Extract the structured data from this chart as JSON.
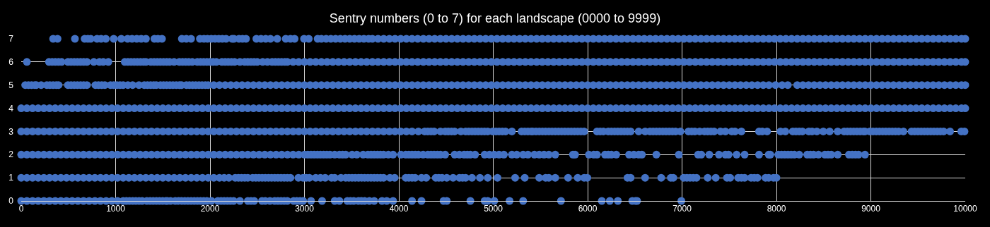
{
  "chart_data": {
    "type": "scatter",
    "title": "Sentry numbers (0 to 7) for each landscape (0000 to 9999)",
    "xlim": [
      0,
      10000
    ],
    "xticks": [
      0,
      1000,
      2000,
      3000,
      4000,
      5000,
      6000,
      7000,
      8000,
      9000,
      10000
    ],
    "ylim": [
      0,
      7
    ],
    "yticks": [
      0,
      1,
      2,
      3,
      4,
      5,
      6,
      7
    ],
    "grid": true,
    "marker": "circle",
    "series": [
      {
        "color": "#4472c4",
        "x": [
          0,
          60,
          120,
          180,
          240,
          300,
          360,
          420,
          480,
          540,
          600,
          660,
          720,
          780,
          840,
          900,
          960,
          1020,
          1080,
          1114,
          1147,
          1181,
          1214,
          1248,
          1281,
          1331,
          1365,
          1398,
          1432,
          1465,
          1498,
          1532,
          1548,
          1582,
          1632,
          1665,
          1699,
          1732,
          1766,
          1799,
          1833,
          1866,
          1900,
          1933,
          1967,
          2016,
          2083,
          2117,
          2150,
          2184,
          2217,
          2250,
          2317,
          2401,
          2434,
          2468,
          2551,
          2585,
          2635,
          2685,
          2719,
          2752,
          2786,
          2819,
          2886,
          2919,
          2953,
          2986,
          3070,
          3187,
          3321,
          3371,
          3455,
          3488,
          3522,
          3572,
          3605,
          3638,
          3688,
          3739,
          3822,
          3872,
          3939,
          4140,
          4240,
          4474,
          4508,
          4758,
          4909,
          4942,
          5011,
          5173,
          5317,
          5718,
          6150,
          6235,
          6320,
          6473,
          6507,
          6524,
          6993
        ],
        "values": [
          0,
          0,
          0,
          0,
          0,
          0,
          0,
          0,
          0,
          0,
          0,
          0,
          0,
          0,
          0,
          0,
          0,
          0,
          0,
          0,
          0,
          0,
          0,
          0,
          0,
          0,
          0,
          0,
          0,
          0,
          0,
          0,
          0,
          0,
          0,
          0,
          0,
          0,
          0,
          0,
          0,
          0,
          0,
          0,
          0,
          0,
          0,
          0,
          0,
          0,
          0,
          0,
          0,
          0,
          0,
          0,
          0,
          0,
          0,
          0,
          0,
          0,
          0,
          0,
          0,
          0,
          0,
          0,
          0,
          0,
          0,
          0,
          0,
          0,
          0,
          0,
          0,
          0,
          0,
          0,
          0,
          0,
          0,
          0,
          0,
          0,
          0,
          0,
          0,
          0,
          0,
          0,
          0,
          0,
          0,
          0,
          0,
          0,
          0,
          0,
          0
        ]
      },
      {
        "color": "#4472c4",
        "x": [
          0,
          60,
          120,
          180,
          240,
          300,
          360,
          420,
          480,
          540,
          600,
          660,
          720,
          780,
          840,
          900,
          960,
          1020,
          1080,
          1140,
          1200,
          1260,
          1320,
          1380,
          1440,
          1500,
          1560,
          1620,
          1680,
          1740,
          1800,
          1860,
          1920,
          1980,
          2040,
          2100,
          2150,
          2200,
          2267,
          2301,
          2334,
          2368,
          2401,
          2451,
          2485,
          2518,
          2552,
          2585,
          2619,
          2652,
          2686,
          2719,
          2752,
          2786,
          2819,
          2852,
          2936,
          2986,
          3019,
          3053,
          3120,
          3170,
          3220,
          3287,
          3321,
          3387,
          3437,
          3471,
          3505,
          3538,
          3572,
          3605,
          3638,
          3672,
          3705,
          3739,
          3772,
          3806,
          3839,
          3906,
          3956,
          4073,
          4106,
          4140,
          4173,
          4240,
          4290,
          4391,
          4424,
          4458,
          4508,
          4575,
          4642,
          4675,
          4708,
          4775,
          4859,
          4942,
          5045,
          5232,
          5334,
          5487,
          5555,
          5589,
          5657,
          5793,
          5895,
          5963,
          5997,
          6422,
          6456,
          6609,
          6779,
          6881,
          6908,
          7017,
          7051,
          7085,
          7119,
          7153,
          7272,
          7357,
          7476,
          7510,
          7595,
          7629,
          7663,
          7731,
          7765,
          7799,
          7884,
          7918,
          7969,
          8000
        ],
        "values": [
          1,
          1,
          1,
          1,
          1,
          1,
          1,
          1,
          1,
          1,
          1,
          1,
          1,
          1,
          1,
          1,
          1,
          1,
          1,
          1,
          1,
          1,
          1,
          1,
          1,
          1,
          1,
          1,
          1,
          1,
          1,
          1,
          1,
          1,
          1,
          1,
          1,
          1,
          1,
          1,
          1,
          1,
          1,
          1,
          1,
          1,
          1,
          1,
          1,
          1,
          1,
          1,
          1,
          1,
          1,
          1,
          1,
          1,
          1,
          1,
          1,
          1,
          1,
          1,
          1,
          1,
          1,
          1,
          1,
          1,
          1,
          1,
          1,
          1,
          1,
          1,
          1,
          1,
          1,
          1,
          1,
          1,
          1,
          1,
          1,
          1,
          1,
          1,
          1,
          1,
          1,
          1,
          1,
          1,
          1,
          1,
          1,
          1,
          1,
          1,
          1,
          1,
          1,
          1,
          1,
          1,
          1,
          1,
          1,
          1,
          1,
          1,
          1,
          1,
          1,
          1,
          1,
          1,
          1,
          1,
          1,
          1,
          1,
          1,
          1,
          1,
          1,
          1,
          1,
          1,
          1,
          1,
          1,
          1
        ]
      },
      {
        "color": "#4472c4",
        "x": [
          0,
          60,
          120,
          180,
          240,
          300,
          360,
          420,
          480,
          540,
          600,
          660,
          720,
          780,
          840,
          900,
          960,
          1020,
          1080,
          1140,
          1200,
          1260,
          1320,
          1380,
          1440,
          1500,
          1560,
          1620,
          1680,
          1740,
          1800,
          1860,
          1920,
          1980,
          2040,
          2100,
          2160,
          2220,
          2280,
          2340,
          2400,
          2460,
          2520,
          2580,
          2640,
          2700,
          2760,
          2820,
          2880,
          2940,
          3000,
          3036,
          3070,
          3103,
          3137,
          3170,
          3204,
          3237,
          3271,
          3321,
          3371,
          3405,
          3438,
          3505,
          3555,
          3622,
          3672,
          3706,
          3739,
          3773,
          3806,
          3839,
          3889,
          3939,
          4023,
          4073,
          4106,
          4140,
          4173,
          4207,
          4257,
          4307,
          4341,
          4374,
          4408,
          4441,
          4491,
          4591,
          4641,
          4691,
          4725,
          4758,
          4808,
          4909,
          4960,
          5011,
          5062,
          5113,
          5198,
          5249,
          5317,
          5368,
          5436,
          5487,
          5538,
          5589,
          5657,
          5844,
          5867,
          6014,
          6065,
          6099,
          6184,
          6218,
          6252,
          6303,
          6439,
          6490,
          6541,
          6575,
          6728,
          6966,
          7170,
          7204,
          7289,
          7391,
          7459,
          7493,
          7578,
          7663,
          7816,
          7918,
          7935,
          8020,
          8054,
          8088,
          8122,
          8156,
          8190,
          8241,
          8326,
          8360,
          8394,
          8445,
          8513,
          8547,
          8581,
          8649,
          8768,
          8802,
          8836,
          8870,
          8938
        ],
        "values": [
          2,
          2,
          2,
          2,
          2,
          2,
          2,
          2,
          2,
          2,
          2,
          2,
          2,
          2,
          2,
          2,
          2,
          2,
          2,
          2,
          2,
          2,
          2,
          2,
          2,
          2,
          2,
          2,
          2,
          2,
          2,
          2,
          2,
          2,
          2,
          2,
          2,
          2,
          2,
          2,
          2,
          2,
          2,
          2,
          2,
          2,
          2,
          2,
          2,
          2,
          2,
          2,
          2,
          2,
          2,
          2,
          2,
          2,
          2,
          2,
          2,
          2,
          2,
          2,
          2,
          2,
          2,
          2,
          2,
          2,
          2,
          2,
          2,
          2,
          2,
          2,
          2,
          2,
          2,
          2,
          2,
          2,
          2,
          2,
          2,
          2,
          2,
          2,
          2,
          2,
          2,
          2,
          2,
          2,
          2,
          2,
          2,
          2,
          2,
          2,
          2,
          2,
          2,
          2,
          2,
          2,
          2,
          2,
          2,
          2,
          2,
          2,
          2,
          2,
          2,
          2,
          2,
          2,
          2,
          2,
          2,
          2,
          2,
          2,
          2,
          2,
          2,
          2,
          2,
          2,
          2,
          2,
          2,
          2,
          2,
          2,
          2,
          2,
          2,
          2,
          2,
          2,
          2,
          2,
          2,
          2,
          2,
          2,
          2,
          2,
          2,
          2,
          2
        ]
      },
      {
        "color": "#4472c4",
        "x": [
          0,
          60,
          120,
          180,
          240,
          300,
          360,
          420,
          480,
          540,
          600,
          660,
          720,
          780,
          840,
          900,
          960,
          1020,
          1080,
          1140,
          1200,
          1260,
          1320,
          1380,
          1440,
          1500,
          1560,
          1620,
          1680,
          1740,
          1800,
          1860,
          1920,
          1980,
          2040,
          2100,
          2160,
          2220,
          2280,
          2340,
          2400,
          2460,
          2520,
          2580,
          2640,
          2700,
          2760,
          2820,
          2880,
          2940,
          3000,
          3060,
          3120,
          3180,
          3240,
          3300,
          3360,
          3420,
          3480,
          3540,
          3600,
          3660,
          3720,
          3780,
          3840,
          3900,
          3960,
          4020,
          4080,
          4140,
          4207,
          4274,
          4307,
          4341,
          4374,
          4441,
          4491,
          4524,
          4558,
          4591,
          4658,
          4708,
          4741,
          4775,
          4808,
          4841,
          4875,
          4908,
          4942,
          4994,
          5028,
          5062,
          5096,
          5130,
          5198,
          5300,
          5334,
          5368,
          5402,
          5419,
          5453,
          5487,
          5521,
          5555,
          5589,
          5623,
          5657,
          5691,
          5725,
          5759,
          5793,
          5827,
          5861,
          5895,
          5929,
          5963,
          6099,
          6133,
          6167,
          6218,
          6252,
          6286,
          6320,
          6354,
          6388,
          6422,
          6456,
          6541,
          6609,
          6660,
          6694,
          6728,
          6762,
          6796,
          6830,
          6864,
          6898,
          6932,
          6983,
          7068,
          7102,
          7136,
          7187,
          7238,
          7272,
          7306,
          7340,
          7408,
          7459,
          7527,
          7561,
          7629,
          7816,
          7850,
          7901,
          8043,
          8094,
          8173,
          8207,
          8241,
          8275,
          8343,
          8377,
          8428,
          8496,
          8564,
          8649,
          8717,
          8751,
          8785,
          8819,
          8853,
          8887,
          8921,
          8938,
          8989,
          9023,
          9057,
          9091,
          9125,
          9159,
          9193,
          9227,
          9261,
          9295,
          9345,
          9431,
          9465,
          9499,
          9533,
          9567,
          9601,
          9635,
          9669,
          9703,
          9737,
          9771,
          9839,
          9958,
          9992
        ],
        "values": [
          3,
          3,
          3,
          3,
          3,
          3,
          3,
          3,
          3,
          3,
          3,
          3,
          3,
          3,
          3,
          3,
          3,
          3,
          3,
          3,
          3,
          3,
          3,
          3,
          3,
          3,
          3,
          3,
          3,
          3,
          3,
          3,
          3,
          3,
          3,
          3,
          3,
          3,
          3,
          3,
          3,
          3,
          3,
          3,
          3,
          3,
          3,
          3,
          3,
          3,
          3,
          3,
          3,
          3,
          3,
          3,
          3,
          3,
          3,
          3,
          3,
          3,
          3,
          3,
          3,
          3,
          3,
          3,
          3,
          3,
          3,
          3,
          3,
          3,
          3,
          3,
          3,
          3,
          3,
          3,
          3,
          3,
          3,
          3,
          3,
          3,
          3,
          3,
          3,
          3,
          3,
          3,
          3,
          3,
          3,
          3,
          3,
          3,
          3,
          3,
          3,
          3,
          3,
          3,
          3,
          3,
          3,
          3,
          3,
          3,
          3,
          3,
          3,
          3,
          3,
          3,
          3,
          3,
          3,
          3,
          3,
          3,
          3,
          3,
          3,
          3,
          3,
          3,
          3,
          3,
          3,
          3,
          3,
          3,
          3,
          3,
          3,
          3,
          3,
          3,
          3,
          3,
          3,
          3,
          3,
          3,
          3,
          3,
          3,
          3,
          3,
          3,
          3,
          3,
          3,
          3,
          3,
          3,
          3,
          3,
          3,
          3,
          3,
          3,
          3,
          3,
          3,
          3,
          3,
          3,
          3,
          3,
          3,
          3,
          3,
          3,
          3,
          3,
          3,
          3,
          3,
          3,
          3,
          3,
          3,
          3,
          3,
          3,
          3,
          3,
          3,
          3,
          3,
          3,
          3,
          3,
          3,
          3,
          3,
          3
        ]
      },
      {
        "color": "#4472c4",
        "x": [
          0,
          60,
          120,
          180,
          240,
          300,
          360,
          420,
          480,
          540,
          600,
          660,
          720,
          780,
          840,
          900,
          960,
          1020,
          1080,
          1140,
          1200,
          1260,
          1320,
          1380,
          1440,
          1500,
          1560,
          1620,
          1680,
          1740,
          1800,
          1860,
          1920,
          1980,
          2040,
          2100,
          2160,
          2220,
          2280,
          2340,
          2400,
          2460,
          2520,
          2580,
          2640,
          2700,
          2760,
          2820,
          2880,
          2940,
          3000,
          3060,
          3120,
          3180,
          3240,
          3300,
          3360,
          3420,
          3480,
          3540,
          3600,
          3660,
          3720,
          3780,
          3840,
          3900,
          3960,
          4020,
          4080,
          4140,
          4200,
          4260,
          4320,
          4380,
          4440,
          4500,
          4560,
          4620,
          4680,
          4740,
          4800,
          4860,
          4920,
          4980,
          5040,
          5100,
          5160,
          5220,
          5280,
          5340,
          5400,
          5460,
          5520,
          5580,
          5640,
          5700,
          5760,
          5820,
          5880,
          5940,
          6000,
          6060,
          6120,
          6180,
          6240,
          6300,
          6360,
          6420,
          6480,
          6540,
          6600,
          6660,
          6720,
          6780,
          6840,
          6900,
          6960,
          7020,
          7080,
          7140,
          7200,
          7260,
          7320,
          7380,
          7440,
          7500,
          7560,
          7620,
          7680,
          7740,
          7800,
          7860,
          7920,
          7980,
          8040,
          8100,
          8160,
          8220,
          8280,
          8340,
          8400,
          8460,
          8520,
          8580,
          8640,
          8700,
          8760,
          8820,
          8880,
          8940,
          9000,
          9060,
          9120,
          9180,
          9240,
          9300,
          9360,
          9420,
          9480,
          9540,
          9600,
          9660,
          9720,
          9780,
          9840,
          9900,
          9960,
          10000
        ],
        "values": [
          4,
          4,
          4,
          4,
          4,
          4,
          4,
          4,
          4,
          4,
          4,
          4,
          4,
          4,
          4,
          4,
          4,
          4,
          4,
          4,
          4,
          4,
          4,
          4,
          4,
          4,
          4,
          4,
          4,
          4,
          4,
          4,
          4,
          4,
          4,
          4,
          4,
          4,
          4,
          4,
          4,
          4,
          4,
          4,
          4,
          4,
          4,
          4,
          4,
          4,
          4,
          4,
          4,
          4,
          4,
          4,
          4,
          4,
          4,
          4,
          4,
          4,
          4,
          4,
          4,
          4,
          4,
          4,
          4,
          4,
          4,
          4,
          4,
          4,
          4,
          4,
          4,
          4,
          4,
          4,
          4,
          4,
          4,
          4,
          4,
          4,
          4,
          4,
          4,
          4,
          4,
          4,
          4,
          4,
          4,
          4,
          4,
          4,
          4,
          4,
          4,
          4,
          4,
          4,
          4,
          4,
          4,
          4,
          4,
          4,
          4,
          4,
          4,
          4,
          4,
          4,
          4,
          4,
          4,
          4,
          4,
          4,
          4,
          4,
          4,
          4,
          4,
          4,
          4,
          4,
          4,
          4,
          4,
          4,
          4,
          4,
          4,
          4,
          4,
          4,
          4,
          4,
          4,
          4,
          4,
          4,
          4,
          4,
          4,
          4,
          4,
          4,
          4,
          4,
          4,
          4,
          4,
          4,
          4,
          4,
          4,
          4,
          4,
          4,
          4,
          4,
          4,
          4
        ]
      },
      {
        "color": "#4472c4",
        "x": [
          43,
          77,
          110,
          144,
          160,
          211,
          271,
          304,
          338,
          371,
          395,
          495,
          528,
          562,
          595,
          629,
          662,
          696,
          786,
          819,
          853,
          886,
          946,
          980,
          1013,
          1047,
          1080,
          1130,
          1180,
          1247,
          1304,
          1337,
          1371,
          1404,
          1431,
          1475,
          1508,
          1541,
          1575,
          1608,
          1642,
          1675,
          1699,
          1749,
          1782,
          1816,
          1849,
          1883,
          1916,
          1950,
          1980,
          2040,
          2100,
          2160,
          2220,
          2280,
          2340,
          2400,
          2460,
          2520,
          2580,
          2640,
          2700,
          2760,
          2820,
          2880,
          2940,
          3000,
          3060,
          3120,
          3180,
          3240,
          3300,
          3360,
          3420,
          3480,
          3540,
          3600,
          3660,
          3720,
          3780,
          3840,
          3900,
          3960,
          4020,
          4080,
          4140,
          4200,
          4260,
          4320,
          4380,
          4440,
          4500,
          4560,
          4620,
          4680,
          4740,
          4800,
          4860,
          4920,
          4980,
          5040,
          5100,
          5160,
          5220,
          5280,
          5340,
          5400,
          5460,
          5520,
          5580,
          5640,
          5700,
          5760,
          5820,
          5880,
          5940,
          6000,
          6060,
          6120,
          6180,
          6240,
          6300,
          6360,
          6420,
          6480,
          6540,
          6600,
          6660,
          6720,
          6780,
          6840,
          6900,
          6960,
          7020,
          7080,
          7140,
          7200,
          7260,
          7320,
          7380,
          7440,
          7500,
          7560,
          7620,
          7680,
          7740,
          7800,
          7860,
          7920,
          7990,
          8060,
          8120,
          8220,
          8280,
          8340,
          8400,
          8460,
          8520,
          8580,
          8640,
          8700,
          8760,
          8820,
          8880,
          8940,
          9000,
          9060,
          9120,
          9180,
          9240,
          9300,
          9360,
          9420,
          9480,
          9540,
          9600,
          9660,
          9720,
          9780,
          9840,
          9900,
          9960,
          10000
        ],
        "values": [
          5,
          5,
          5,
          5,
          5,
          5,
          5,
          5,
          5,
          5,
          5,
          5,
          5,
          5,
          5,
          5,
          5,
          5,
          5,
          5,
          5,
          5,
          5,
          5,
          5,
          5,
          5,
          5,
          5,
          5,
          5,
          5,
          5,
          5,
          5,
          5,
          5,
          5,
          5,
          5,
          5,
          5,
          5,
          5,
          5,
          5,
          5,
          5,
          5,
          5,
          5,
          5,
          5,
          5,
          5,
          5,
          5,
          5,
          5,
          5,
          5,
          5,
          5,
          5,
          5,
          5,
          5,
          5,
          5,
          5,
          5,
          5,
          5,
          5,
          5,
          5,
          5,
          5,
          5,
          5,
          5,
          5,
          5,
          5,
          5,
          5,
          5,
          5,
          5,
          5,
          5,
          5,
          5,
          5,
          5,
          5,
          5,
          5,
          5,
          5,
          5,
          5,
          5,
          5,
          5,
          5,
          5,
          5,
          5,
          5,
          5,
          5,
          5,
          5,
          5,
          5,
          5,
          5,
          5,
          5,
          5,
          5,
          5,
          5,
          5,
          5,
          5,
          5,
          5,
          5,
          5,
          5,
          5,
          5,
          5,
          5,
          5,
          5,
          5,
          5,
          5,
          5,
          5,
          5,
          5,
          5,
          5,
          5,
          5,
          5,
          5,
          5,
          5,
          5,
          5,
          5,
          5,
          5,
          5,
          5,
          5,
          5,
          5,
          5,
          5,
          5,
          5,
          5,
          5,
          5,
          5,
          5,
          5,
          5,
          5,
          5,
          5,
          5,
          5,
          5,
          5,
          5,
          5,
          5
        ]
      },
      {
        "color": "#4472c4",
        "x": [
          60,
          294,
          328,
          361,
          395,
          428,
          495,
          528,
          562,
          595,
          629,
          662,
          696,
          769,
          829,
          869,
          923,
          1097,
          1130,
          1163,
          1197,
          1230,
          1264,
          1297,
          1321,
          1374,
          1408,
          1441,
          1474,
          1508,
          1541,
          1572,
          1619,
          1675,
          1709,
          1742,
          1775,
          1812,
          1866,
          1900,
          1933,
          1967,
          2000,
          2033,
          2067,
          2126,
          2160,
          2193,
          2227,
          2260,
          2317,
          2367,
          2400,
          2434,
          2467,
          2500,
          2558,
          2608,
          2658,
          2692,
          2725,
          2758,
          2792,
          2819,
          2880,
          2940,
          3000,
          3060,
          3120,
          3180,
          3240,
          3300,
          3360,
          3420,
          3480,
          3540,
          3600,
          3660,
          3720,
          3780,
          3840,
          3900,
          3960,
          4020,
          4080,
          4140,
          4200,
          4260,
          4320,
          4380,
          4440,
          4500,
          4560,
          4620,
          4680,
          4740,
          4800,
          4860,
          4920,
          4980,
          5040,
          5100,
          5160,
          5220,
          5280,
          5340,
          5400,
          5460,
          5520,
          5580,
          5640,
          5700,
          5760,
          5820,
          5880,
          5940,
          6000,
          6060,
          6120,
          6180,
          6240,
          6300,
          6360,
          6420,
          6480,
          6540,
          6600,
          6660,
          6720,
          6780,
          6840,
          6900,
          6960,
          7020,
          7080,
          7140,
          7200,
          7260,
          7320,
          7380,
          7440,
          7500,
          7560,
          7620,
          7680,
          7740,
          7800,
          7860,
          7920,
          7980,
          8040,
          8100,
          8160,
          8220,
          8280,
          8340,
          8400,
          8460,
          8520,
          8580,
          8640,
          8700,
          8760,
          8820,
          8880,
          8940,
          9000,
          9060,
          9120,
          9180,
          9240,
          9300,
          9360,
          9420,
          9480,
          9540,
          9600,
          9660,
          9720,
          9780,
          9840,
          9900,
          9960,
          10000
        ],
        "values": [
          6,
          6,
          6,
          6,
          6,
          6,
          6,
          6,
          6,
          6,
          6,
          6,
          6,
          6,
          6,
          6,
          6,
          6,
          6,
          6,
          6,
          6,
          6,
          6,
          6,
          6,
          6,
          6,
          6,
          6,
          6,
          6,
          6,
          6,
          6,
          6,
          6,
          6,
          6,
          6,
          6,
          6,
          6,
          6,
          6,
          6,
          6,
          6,
          6,
          6,
          6,
          6,
          6,
          6,
          6,
          6,
          6,
          6,
          6,
          6,
          6,
          6,
          6,
          6,
          6,
          6,
          6,
          6,
          6,
          6,
          6,
          6,
          6,
          6,
          6,
          6,
          6,
          6,
          6,
          6,
          6,
          6,
          6,
          6,
          6,
          6,
          6,
          6,
          6,
          6,
          6,
          6,
          6,
          6,
          6,
          6,
          6,
          6,
          6,
          6,
          6,
          6,
          6,
          6,
          6,
          6,
          6,
          6,
          6,
          6,
          6,
          6,
          6,
          6,
          6,
          6,
          6,
          6,
          6,
          6,
          6,
          6,
          6,
          6,
          6,
          6,
          6,
          6,
          6,
          6,
          6,
          6,
          6,
          6,
          6,
          6,
          6,
          6,
          6,
          6,
          6,
          6,
          6,
          6,
          6,
          6,
          6,
          6,
          6,
          6,
          6,
          6,
          6,
          6,
          6,
          6,
          6,
          6,
          6,
          6,
          6,
          6,
          6,
          6,
          6,
          6,
          6,
          6,
          6,
          6,
          6,
          6,
          6,
          6,
          6,
          6,
          6,
          6,
          6,
          6,
          6,
          6,
          6,
          6
        ]
      },
      {
        "color": "#4472c4",
        "x": [
          338,
          385,
          569,
          672,
          706,
          736,
          803,
          846,
          896,
          980,
          1060,
          1127,
          1174,
          1224,
          1271,
          1321,
          1411,
          1448,
          1491,
          1702,
          1749,
          1799,
          1893,
          1936,
          1973,
          2013,
          2053,
          2093,
          2130,
          2170,
          2234,
          2254,
          2307,
          2344,
          2381,
          2491,
          2540,
          2590,
          2640,
          2712,
          2802,
          2852,
          2896,
          2996,
          3046,
          3140,
          3180,
          3230,
          3280,
          3330,
          3380,
          3430,
          3480,
          3530,
          3580,
          3630,
          3680,
          3720,
          3780,
          3840,
          3900,
          3960,
          4020,
          4080,
          4140,
          4200,
          4260,
          4320,
          4380,
          4440,
          4500,
          4560,
          4620,
          4680,
          4740,
          4800,
          4860,
          4920,
          4980,
          5040,
          5100,
          5160,
          5220,
          5280,
          5340,
          5400,
          5460,
          5520,
          5580,
          5640,
          5700,
          5760,
          5820,
          5880,
          5940,
          6000,
          6060,
          6120,
          6180,
          6240,
          6300,
          6360,
          6420,
          6480,
          6540,
          6600,
          6660,
          6720,
          6780,
          6840,
          6900,
          6960,
          7020,
          7080,
          7140,
          7200,
          7260,
          7320,
          7380,
          7440,
          7500,
          7560,
          7620,
          7680,
          7740,
          7800,
          7860,
          7920,
          7980,
          8040,
          8100,
          8160,
          8220,
          8280,
          8340,
          8400,
          8460,
          8520,
          8580,
          8640,
          8700,
          8760,
          8820,
          8880,
          8940,
          9000,
          9060,
          9120,
          9180,
          9240,
          9300,
          9360,
          9420,
          9480,
          9540,
          9600,
          9660,
          9720,
          9780,
          9840,
          9900,
          9960,
          10000
        ],
        "values": [
          7,
          7,
          7,
          7,
          7,
          7,
          7,
          7,
          7,
          7,
          7,
          7,
          7,
          7,
          7,
          7,
          7,
          7,
          7,
          7,
          7,
          7,
          7,
          7,
          7,
          7,
          7,
          7,
          7,
          7,
          7,
          7,
          7,
          7,
          7,
          7,
          7,
          7,
          7,
          7,
          7,
          7,
          7,
          7,
          7,
          7,
          7,
          7,
          7,
          7,
          7,
          7,
          7,
          7,
          7,
          7,
          7,
          7,
          7,
          7,
          7,
          7,
          7,
          7,
          7,
          7,
          7,
          7,
          7,
          7,
          7,
          7,
          7,
          7,
          7,
          7,
          7,
          7,
          7,
          7,
          7,
          7,
          7,
          7,
          7,
          7,
          7,
          7,
          7,
          7,
          7,
          7,
          7,
          7,
          7,
          7,
          7,
          7,
          7,
          7,
          7,
          7,
          7,
          7,
          7,
          7,
          7,
          7,
          7,
          7,
          7,
          7,
          7,
          7,
          7,
          7,
          7,
          7,
          7,
          7,
          7,
          7,
          7,
          7,
          7,
          7,
          7,
          7,
          7,
          7,
          7,
          7,
          7,
          7,
          7,
          7,
          7,
          7,
          7,
          7,
          7,
          7,
          7,
          7,
          7,
          7,
          7,
          7,
          7,
          7,
          7,
          7,
          7,
          7,
          7,
          7,
          7,
          7,
          7,
          7,
          7,
          7,
          7
        ]
      }
    ]
  }
}
